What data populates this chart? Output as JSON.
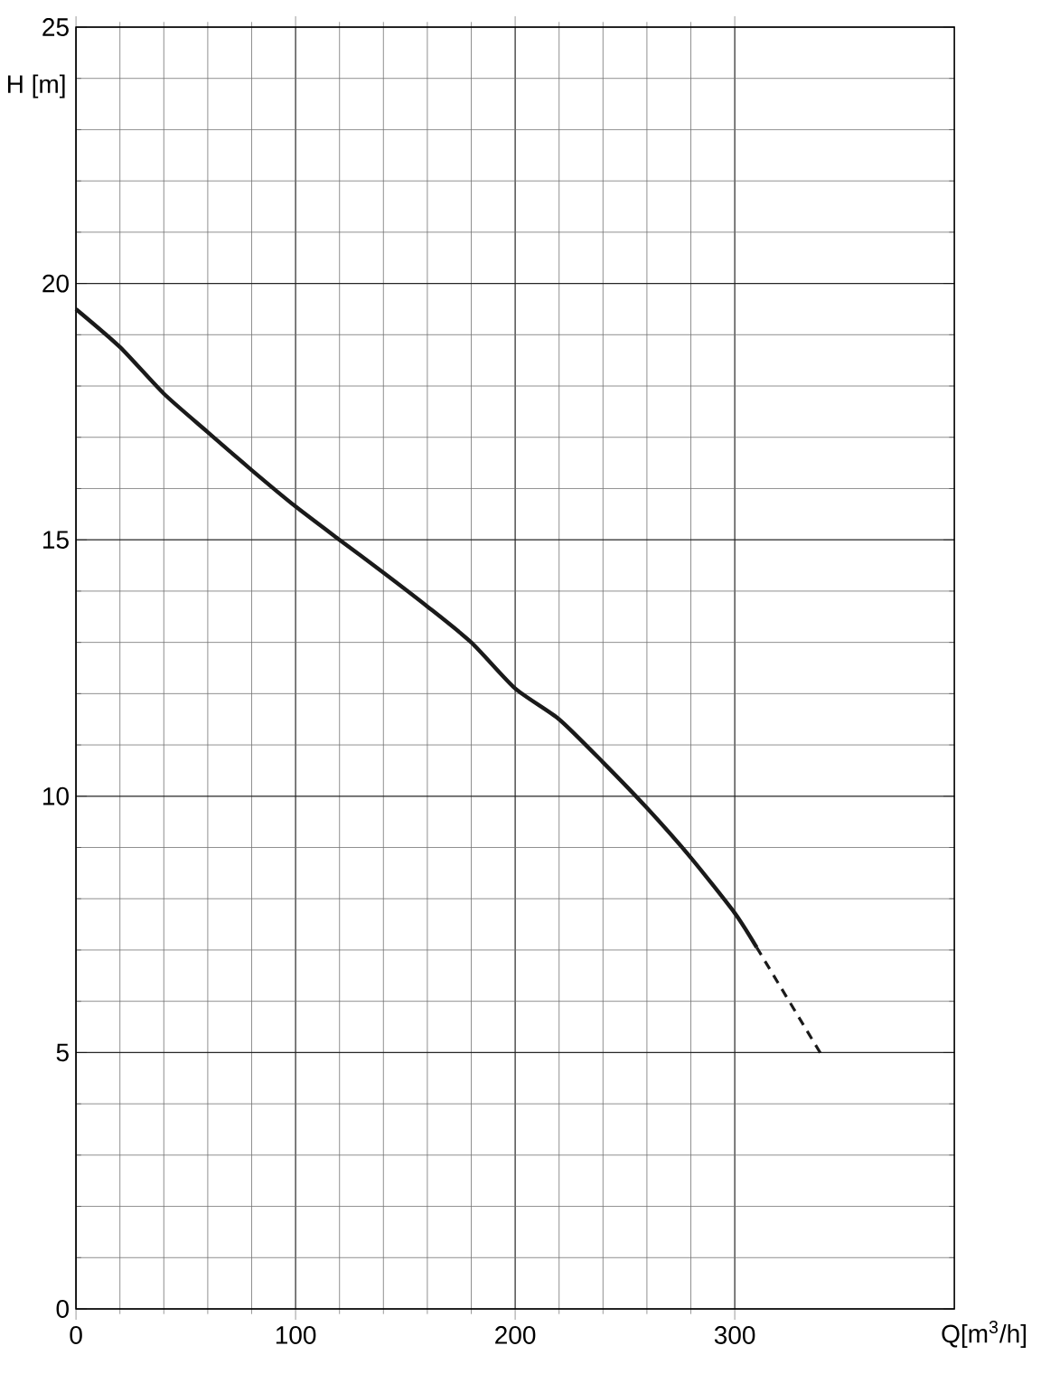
{
  "chart_data": {
    "type": "line",
    "xlabel": "Q[m$^{3}$/h]",
    "ylabel": "H [m]",
    "xlim": [
      0,
      400
    ],
    "xticks": [
      0,
      100,
      200,
      300
    ],
    "ylim": [
      0,
      25
    ],
    "yticks": [
      0,
      5,
      10,
      15,
      20,
      25
    ],
    "grid": true,
    "series": [
      {
        "color": "#1a1a1a",
        "line_style": "solid",
        "x": [
          0,
          20,
          40,
          60,
          80,
          100,
          120,
          140,
          160,
          180,
          200,
          220,
          240,
          260,
          280,
          300,
          310
        ],
        "values": [
          19.5,
          18.76,
          17.85,
          17.1,
          16.36,
          15.65,
          15.0,
          14.36,
          13.7,
          13.0,
          12.1,
          11.5,
          10.66,
          9.77,
          8.8,
          7.72,
          7.05
        ]
      },
      {
        "color": "#1a1a1a",
        "line_style": "dashed",
        "x": [
          310,
          340
        ],
        "values": [
          7.05,
          4.92
        ]
      }
    ]
  }
}
